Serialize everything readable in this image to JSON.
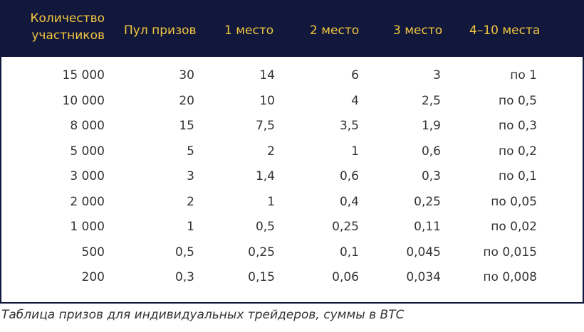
{
  "table": {
    "headers": [
      {
        "line1": "Количество",
        "line2": "участников"
      },
      {
        "line1": "Пул призов"
      },
      {
        "line1": "1 место"
      },
      {
        "line1": "2 место"
      },
      {
        "line1": "3 место"
      },
      {
        "line1": "4–10 места"
      }
    ],
    "rows": [
      [
        "15 000",
        "30",
        "14",
        "6",
        "3",
        "по 1"
      ],
      [
        "10 000",
        "20",
        "10",
        "4",
        "2,5",
        "по 0,5"
      ],
      [
        "8 000",
        "15",
        "7,5",
        "3,5",
        "1,9",
        "по 0,3"
      ],
      [
        "5 000",
        "5",
        "2",
        "1",
        "0,6",
        "по 0,2"
      ],
      [
        "3 000",
        "3",
        "1,4",
        "0,6",
        "0,3",
        "по 0,1"
      ],
      [
        "2 000",
        "2",
        "1",
        "0,4",
        "0,25",
        "по 0,05"
      ],
      [
        "1 000",
        "1",
        "0,5",
        "0,25",
        "0,11",
        "по 0,02"
      ],
      [
        "500",
        "0,5",
        "0,25",
        "0,1",
        "0,045",
        "по 0,015"
      ],
      [
        "200",
        "0,3",
        "0,15",
        "0,06",
        "0,034",
        "по 0,008"
      ]
    ]
  },
  "caption": "Таблица призов для индивидуальных трейдеров, суммы в BTC",
  "colors": {
    "header_bg": "#11183b",
    "header_text": "#f3c63f",
    "body_text": "#333333",
    "border": "#11183b"
  }
}
